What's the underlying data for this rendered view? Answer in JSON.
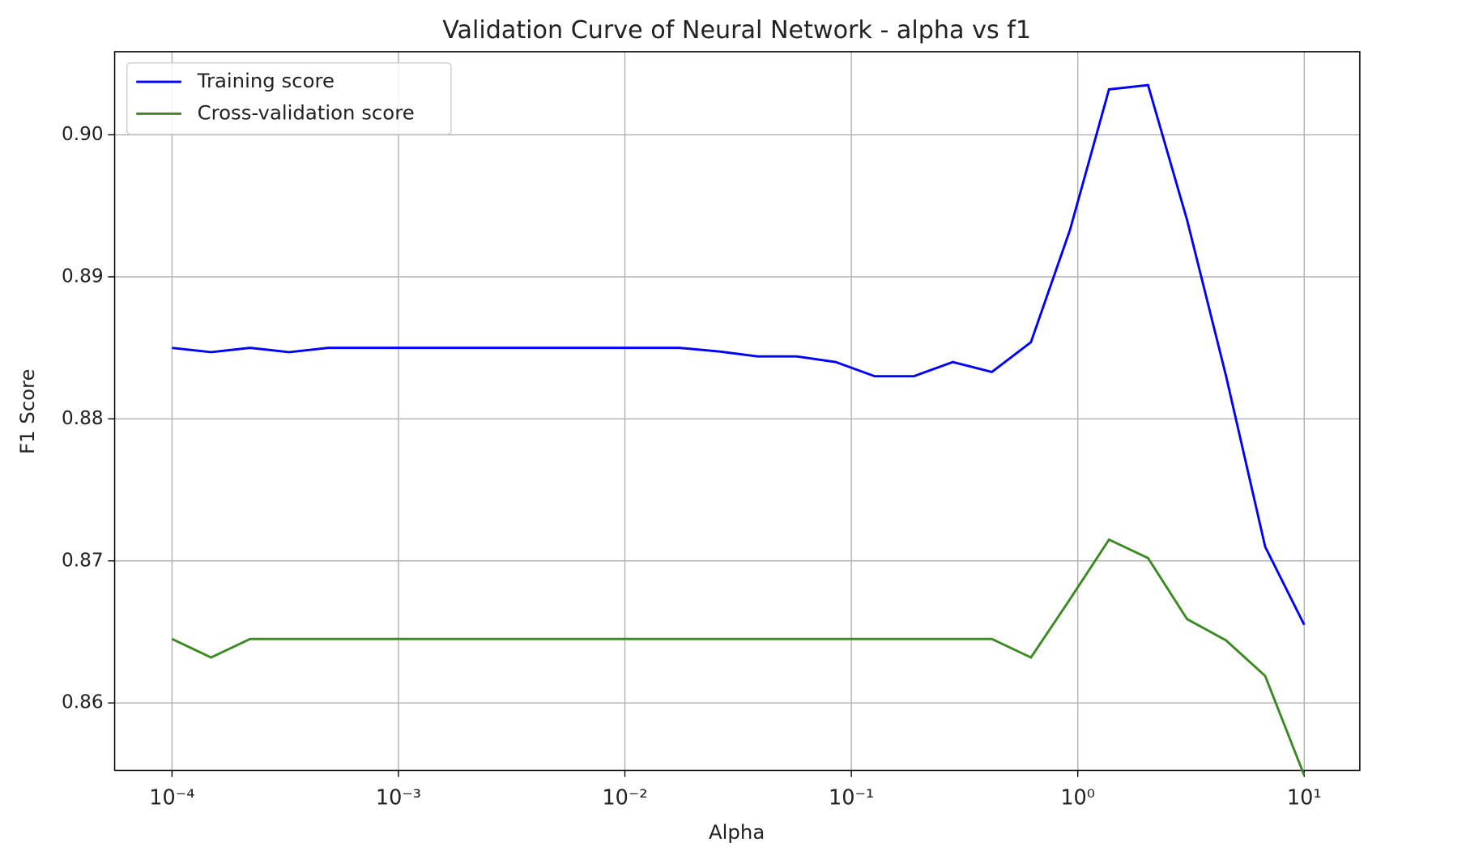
{
  "chart_data": {
    "type": "line",
    "title": "Validation Curve of Neural Network - alpha vs f1",
    "x_label": "Alpha",
    "y_label": "F1 Score",
    "x": [
      0.0001,
      0.0001487,
      0.0002212,
      0.000329,
      0.0004894,
      0.0007279,
      0.001083,
      0.00161,
      0.002395,
      0.003562,
      0.005298,
      0.00788,
      0.01172,
      0.01743,
      0.02593,
      0.03857,
      0.05736,
      0.08532,
      0.1269,
      0.1887,
      0.2807,
      0.4175,
      0.621,
      0.9237,
      1.374,
      2.043,
      3.039,
      4.52,
      6.723,
      10
    ],
    "series": [
      {
        "name": "Training score",
        "color": "#0000ff",
        "values": [
          0.885,
          0.8847,
          0.885,
          0.8847,
          0.885,
          0.885,
          0.885,
          0.885,
          0.885,
          0.885,
          0.885,
          0.885,
          0.885,
          0.885,
          0.88475,
          0.8844,
          0.8844,
          0.884,
          0.883,
          0.883,
          0.884,
          0.8833,
          0.8854,
          0.8933,
          0.9032,
          0.9035,
          0.894,
          0.883,
          0.871,
          0.8655
        ]
      },
      {
        "name": "Cross-validation score",
        "color": "#3a8a22",
        "values": [
          0.8645,
          0.8632,
          0.8645,
          0.8645,
          0.8645,
          0.8645,
          0.8645,
          0.8645,
          0.8645,
          0.8645,
          0.8645,
          0.8645,
          0.8645,
          0.8645,
          0.8645,
          0.8645,
          0.8645,
          0.8645,
          0.8645,
          0.8645,
          0.8645,
          0.8645,
          0.8632,
          0.8673,
          0.8715,
          0.8702,
          0.8659,
          0.8644,
          0.8619,
          0.8549
        ]
      }
    ],
    "xlog": true,
    "xlim": [
      5.58e-05,
      17.6
    ],
    "xticks": [
      {
        "value": 0.0001,
        "label": "10⁻⁴"
      },
      {
        "value": 0.001,
        "label": "10⁻³"
      },
      {
        "value": 0.01,
        "label": "10⁻²"
      },
      {
        "value": 0.1,
        "label": "10⁻¹"
      },
      {
        "value": 1,
        "label": "10⁰"
      },
      {
        "value": 10,
        "label": "10¹"
      }
    ],
    "ylim": [
      0.85525,
      0.90585
    ],
    "yticks": [
      {
        "value": 0.86,
        "label": "0.86"
      },
      {
        "value": 0.87,
        "label": "0.87"
      },
      {
        "value": 0.88,
        "label": "0.88"
      },
      {
        "value": 0.89,
        "label": "0.89"
      },
      {
        "value": 0.9,
        "label": "0.90"
      }
    ],
    "grid": true,
    "legend": "upper left"
  }
}
